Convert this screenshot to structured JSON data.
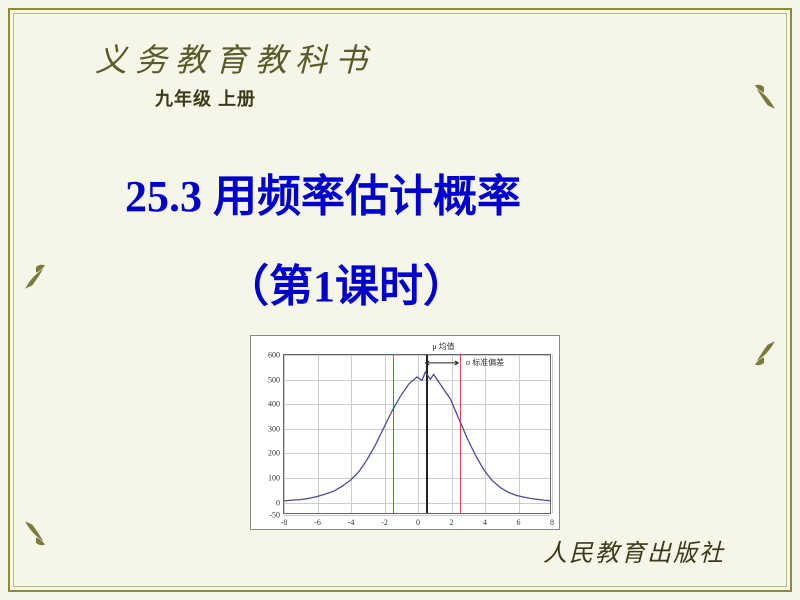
{
  "header": {
    "line1": "义务教育教科书",
    "line2": "九年级  上册"
  },
  "title": {
    "line1": "25.3  用频率估计概率",
    "line2": "（第1课时）"
  },
  "publisher": "人民教育出版社",
  "chart": {
    "ylim": [
      -50,
      600
    ],
    "yticks": [
      -50,
      0,
      100,
      200,
      300,
      400,
      500,
      600
    ],
    "xlim": [
      -8,
      8
    ],
    "xticks": [
      -8,
      -6,
      -4,
      -2,
      0,
      2,
      4,
      6,
      8
    ],
    "grid_color": "#cccccc",
    "bg_color": "#ffffff",
    "curve_color": "#4a4a9a",
    "redline_color": "#dd4444",
    "blackline_color": "#222222",
    "red_vlines_x": [
      -1.5,
      2.5
    ],
    "black_vline_x": 0.5,
    "anno_mu": "μ 均值",
    "anno_sigma": "σ 标准偏差",
    "curve_points": [
      [
        -8,
        0
      ],
      [
        -7.5,
        3
      ],
      [
        -7,
        5
      ],
      [
        -6.5,
        10
      ],
      [
        -6,
        18
      ],
      [
        -5.5,
        28
      ],
      [
        -5,
        40
      ],
      [
        -4.5,
        60
      ],
      [
        -4,
        85
      ],
      [
        -3.5,
        120
      ],
      [
        -3,
        170
      ],
      [
        -2.5,
        230
      ],
      [
        -2,
        300
      ],
      [
        -1.5,
        370
      ],
      [
        -1,
        430
      ],
      [
        -0.5,
        480
      ],
      [
        0,
        510
      ],
      [
        0.3,
        495
      ],
      [
        0.5,
        530
      ],
      [
        0.8,
        500
      ],
      [
        1,
        520
      ],
      [
        1.3,
        490
      ],
      [
        1.5,
        470
      ],
      [
        2,
        420
      ],
      [
        2.5,
        340
      ],
      [
        3,
        260
      ],
      [
        3.5,
        190
      ],
      [
        4,
        130
      ],
      [
        4.5,
        85
      ],
      [
        5,
        55
      ],
      [
        5.5,
        35
      ],
      [
        6,
        22
      ],
      [
        6.5,
        14
      ],
      [
        7,
        8
      ],
      [
        7.5,
        4
      ],
      [
        8,
        0
      ]
    ]
  }
}
